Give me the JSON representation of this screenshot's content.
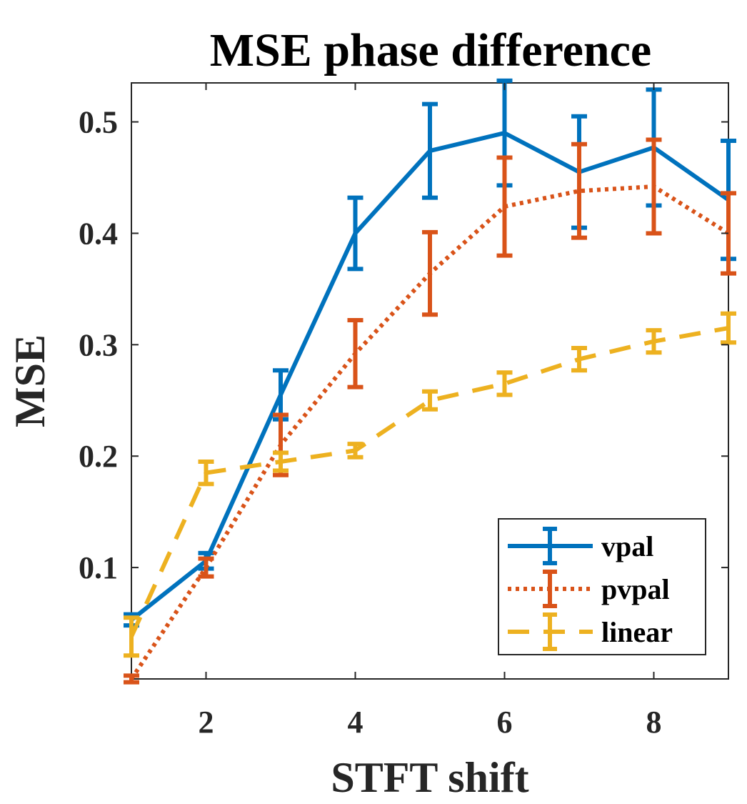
{
  "chart_data": {
    "type": "line",
    "title": "MSE phase difference",
    "xlabel": "STFT shift",
    "ylabel": "MSE",
    "xlim": [
      1,
      9
    ],
    "ylim": [
      0,
      0.535
    ],
    "xticks": [
      2,
      4,
      6,
      8
    ],
    "xtick_labels": [
      "2",
      "4",
      "6",
      "8"
    ],
    "yticks": [
      0.1,
      0.2,
      0.3,
      0.4,
      0.5
    ],
    "ytick_labels": [
      "0.1",
      "0.2",
      "0.3",
      "0.4",
      "0.5"
    ],
    "grid": false,
    "legend_position": "bottom-right",
    "x": [
      1,
      2,
      3,
      4,
      5,
      6,
      7,
      8,
      9
    ],
    "series": [
      {
        "name": "vpal",
        "color": "#0072BD",
        "style": "solid",
        "values": [
          0.053,
          0.106,
          0.255,
          0.4,
          0.474,
          0.49,
          0.455,
          0.477,
          0.43
        ],
        "errors": [
          0.005,
          0.007,
          0.022,
          0.032,
          0.042,
          0.047,
          0.05,
          0.052,
          0.053
        ]
      },
      {
        "name": "pvpal",
        "color": "#D95319",
        "style": "dotted",
        "values": [
          0.0,
          0.1,
          0.21,
          0.292,
          0.364,
          0.424,
          0.438,
          0.442,
          0.4
        ],
        "errors": [
          0.003,
          0.008,
          0.027,
          0.03,
          0.037,
          0.044,
          0.042,
          0.042,
          0.036
        ]
      },
      {
        "name": "linear",
        "color": "#EDB120",
        "style": "dashed",
        "values": [
          0.038,
          0.185,
          0.195,
          0.205,
          0.25,
          0.265,
          0.287,
          0.303,
          0.315
        ],
        "errors": [
          0.017,
          0.01,
          0.008,
          0.006,
          0.008,
          0.01,
          0.01,
          0.01,
          0.013
        ]
      }
    ]
  }
}
